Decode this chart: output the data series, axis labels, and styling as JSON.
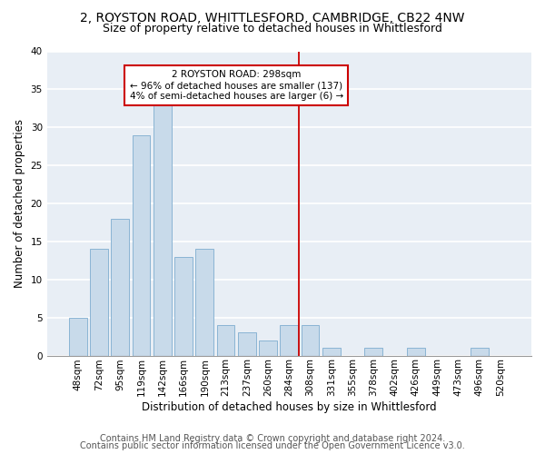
{
  "title1": "2, ROYSTON ROAD, WHITTLESFORD, CAMBRIDGE, CB22 4NW",
  "title2": "Size of property relative to detached houses in Whittlesford",
  "xlabel": "Distribution of detached houses by size in Whittlesford",
  "ylabel": "Number of detached properties",
  "bar_labels": [
    "48sqm",
    "72sqm",
    "95sqm",
    "119sqm",
    "142sqm",
    "166sqm",
    "190sqm",
    "213sqm",
    "237sqm",
    "260sqm",
    "284sqm",
    "308sqm",
    "331sqm",
    "355sqm",
    "378sqm",
    "402sqm",
    "426sqm",
    "449sqm",
    "473sqm",
    "496sqm",
    "520sqm"
  ],
  "bar_values": [
    5,
    14,
    18,
    29,
    33,
    13,
    14,
    4,
    3,
    2,
    4,
    4,
    1,
    0,
    1,
    0,
    1,
    0,
    0,
    1,
    0
  ],
  "bar_color": "#c8daea",
  "bar_edgecolor": "#8ab4d4",
  "background_color": "#e8eef5",
  "grid_color": "#ffffff",
  "vline_color": "#cc0000",
  "vline_x_index": 10.45,
  "annotation_line1": "2 ROYSTON ROAD: 298sqm",
  "annotation_line2": "← 96% of detached houses are smaller (137)",
  "annotation_line3": "4% of semi-detached houses are larger (6) →",
  "annotation_box_edgecolor": "#cc0000",
  "ylim": [
    0,
    40
  ],
  "yticks": [
    0,
    5,
    10,
    15,
    20,
    25,
    30,
    35,
    40
  ],
  "footer1": "Contains HM Land Registry data © Crown copyright and database right 2024.",
  "footer2": "Contains public sector information licensed under the Open Government Licence v3.0.",
  "title1_fontsize": 10,
  "title2_fontsize": 9,
  "xlabel_fontsize": 8.5,
  "ylabel_fontsize": 8.5,
  "tick_fontsize": 7.5,
  "annotation_fontsize": 7.5,
  "footer_fontsize": 7
}
